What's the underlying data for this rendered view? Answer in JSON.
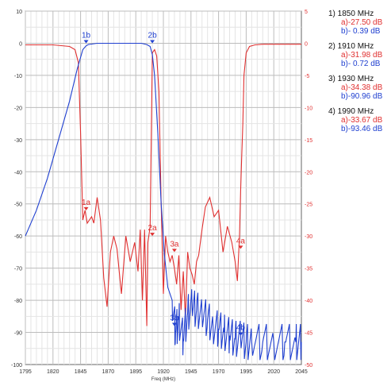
{
  "chart_data": {
    "type": "line",
    "title": "",
    "xlabel": "Freq (MHz)",
    "ylabel_left": "",
    "ylabel_right": "",
    "xlim": [
      1795,
      2045
    ],
    "ylim_left": [
      -100,
      10
    ],
    "ylim_right": [
      -50,
      5
    ],
    "grid": true,
    "x_ticks": [
      "1795",
      "1820",
      "1845",
      "1870",
      "1895",
      "1920",
      "1945",
      "1970",
      "1995",
      "2020",
      "2045"
    ],
    "y_ticks_left": [
      "10",
      "0",
      "-10",
      "-20",
      "-30",
      "-40",
      "-50",
      "-60",
      "-70",
      "-80",
      "-90",
      "-100"
    ],
    "y_ticks_right": [
      "5",
      "0",
      "-5",
      "-10",
      "-15",
      "-20",
      "-25",
      "-30",
      "-35",
      "-40",
      "-45",
      "-50"
    ],
    "series": [
      {
        "color": "#e03030",
        "axis": "left",
        "x": [
          1795,
          1820,
          1835,
          1840,
          1843,
          1845,
          1847,
          1849,
          1851,
          1853,
          1855,
          1857,
          1860,
          1863,
          1866,
          1869,
          1872,
          1875,
          1878,
          1882,
          1886,
          1890,
          1894,
          1897,
          1899,
          1901,
          1903,
          1905,
          1906,
          1908,
          1910,
          1912,
          1914,
          1916,
          1918,
          1920,
          1922,
          1924,
          1926,
          1928,
          1930,
          1932,
          1934,
          1936,
          1938,
          1940,
          1942,
          1944,
          1946,
          1948,
          1950,
          1952,
          1955,
          1958,
          1962,
          1966,
          1970,
          1974,
          1978,
          1982,
          1985,
          1987,
          1989,
          1990,
          1991,
          1992,
          1993,
          1995,
          1998,
          2003,
          2010,
          2020,
          2045
        ],
        "y": [
          -0.5,
          -0.5,
          -1,
          -2,
          -6,
          -28,
          -55,
          -52,
          -56,
          -55,
          -54,
          -56,
          -48,
          -55,
          -73,
          -82,
          -65,
          -60,
          -64,
          -78,
          -60,
          -68,
          -62,
          -71,
          -58,
          -80,
          -58,
          -88,
          -62,
          -57,
          -3,
          -2,
          -4,
          -15,
          -50,
          -78,
          -60,
          -65,
          -68,
          -66,
          -70,
          -75,
          -66,
          -83,
          -71,
          -86,
          -65,
          -70,
          -72,
          -75,
          -68,
          -66,
          -58,
          -51,
          -48,
          -54,
          -52,
          -65,
          -57,
          -62,
          -68,
          -74,
          -60,
          -46,
          -35,
          -25,
          -10,
          -3,
          -1,
          -0.5,
          -0.3,
          -0.3,
          -0.3
        ]
      },
      {
        "color": "#2040d0",
        "axis": "right",
        "x": [
          1795,
          1805,
          1815,
          1825,
          1835,
          1842,
          1847,
          1850,
          1852,
          1860,
          1880,
          1900,
          1905,
          1908,
          1910,
          1912,
          1915,
          1918,
          1921,
          1924,
          1928,
          1931,
          1934,
          1938,
          1942,
          1946,
          1950,
          1955,
          1960,
          1965,
          1970,
          1975,
          1980,
          1985,
          1990,
          1995,
          2000,
          2010,
          2020,
          2030,
          2040,
          2045
        ],
        "y": [
          -30,
          -26,
          -21,
          -15,
          -9,
          -4,
          -1,
          -0.4,
          -0.2,
          0,
          0,
          0,
          -0.2,
          -0.5,
          -1.8,
          -5,
          -14,
          -25,
          -33,
          -38,
          -40,
          -45,
          -43,
          -46,
          -42,
          -41,
          -41.5,
          -42,
          -43,
          -44,
          -44.5,
          -45,
          -45.5,
          -46,
          -46,
          -46.5,
          -46.5,
          -46.5,
          -46.5,
          -46.5,
          -46.5,
          -46.5
        ]
      }
    ],
    "annotations": [
      {
        "label": "1b",
        "x": 1850,
        "y": 0,
        "axis": "left",
        "color": "#2040d0"
      },
      {
        "label": "2b",
        "x": 1910,
        "y": 0,
        "axis": "left",
        "color": "#2040d0"
      },
      {
        "label": "1a",
        "x": 1850,
        "y": -52,
        "axis": "left",
        "color": "#e03030"
      },
      {
        "label": "2a",
        "x": 1910,
        "y": -60,
        "axis": "left",
        "color": "#e03030"
      },
      {
        "label": "3a",
        "x": 1930,
        "y": -65,
        "axis": "left",
        "color": "#e03030"
      },
      {
        "label": "4a",
        "x": 1990,
        "y": -64,
        "axis": "left",
        "color": "#e03030"
      },
      {
        "label": "3b",
        "x": 1930,
        "y": -88,
        "axis": "left",
        "color": "#2040d0"
      },
      {
        "label": "4b",
        "x": 1990,
        "y": -91,
        "axis": "left",
        "color": "#2040d0"
      }
    ]
  },
  "markers": [
    {
      "head": "1) 1850 MHz",
      "a": "a)-27.50 dB",
      "b": "b)-  0.39 dB"
    },
    {
      "head": "2) 1910 MHz",
      "a": "a)-31.98 dB",
      "b": "b)-  0.72 dB"
    },
    {
      "head": "3) 1930 MHz",
      "a": "a)-34.38 dB",
      "b": "b)-90.96 dB"
    },
    {
      "head": "4) 1990 MHz",
      "a": "a)-33.67 dB",
      "b": "b)-93.46 dB"
    }
  ]
}
